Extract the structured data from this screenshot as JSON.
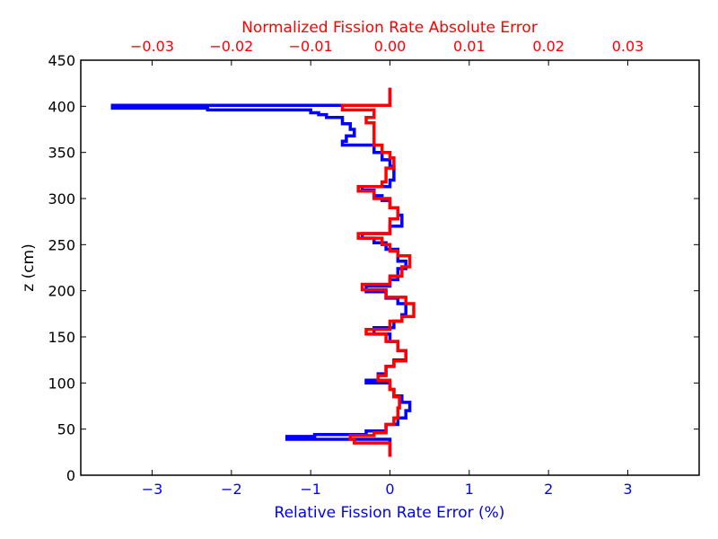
{
  "chart_data": {
    "type": "line",
    "title": "",
    "ylabel": "z (cm)",
    "ylim": [
      0,
      450
    ],
    "yticks": [
      0,
      50,
      100,
      150,
      200,
      250,
      300,
      350,
      400,
      450
    ],
    "xlabel_bottom": "Relative Fission Rate Error (%)",
    "xlim_bottom": [
      -3.9,
      3.9
    ],
    "xticks_bottom": [
      -3,
      -2,
      -1,
      0,
      1,
      2,
      3
    ],
    "xtick_labels_bottom": [
      "−3",
      "−2",
      "−1",
      "0",
      "1",
      "2",
      "3"
    ],
    "xlabel_top": "Normalized Fission Rate Absolute Error",
    "xlim_top": [
      -0.039,
      0.039
    ],
    "xticks_top": [
      -0.03,
      -0.02,
      -0.01,
      0.0,
      0.01,
      0.02,
      0.03
    ],
    "xtick_labels_top": [
      "−0.03",
      "−0.02",
      "−0.01",
      "0.00",
      "0.01",
      "0.02",
      "0.03"
    ],
    "grid": false,
    "legend": "none",
    "series": [
      {
        "axis": "bottom",
        "color": "#0000ff",
        "style": "steps",
        "points": [
          [
            0.0,
            420
          ],
          [
            0.0,
            401
          ],
          [
            -3.5,
            401
          ],
          [
            -3.5,
            398
          ],
          [
            -2.3,
            398
          ],
          [
            -2.3,
            396
          ],
          [
            -1.0,
            396
          ],
          [
            -1.0,
            393
          ],
          [
            -0.9,
            393
          ],
          [
            -0.9,
            391
          ],
          [
            -0.8,
            391
          ],
          [
            -0.8,
            388
          ],
          [
            -0.6,
            388
          ],
          [
            -0.6,
            381
          ],
          [
            -0.5,
            381
          ],
          [
            -0.5,
            375
          ],
          [
            -0.45,
            375
          ],
          [
            -0.45,
            368
          ],
          [
            -0.55,
            368
          ],
          [
            -0.55,
            362
          ],
          [
            -0.6,
            362
          ],
          [
            -0.6,
            358
          ],
          [
            -0.2,
            358
          ],
          [
            -0.2,
            350
          ],
          [
            -0.1,
            350
          ],
          [
            -0.1,
            342
          ],
          [
            0.0,
            342
          ],
          [
            0.0,
            335
          ],
          [
            0.05,
            335
          ],
          [
            0.05,
            320
          ],
          [
            0.0,
            320
          ],
          [
            0.0,
            313
          ],
          [
            -0.35,
            313
          ],
          [
            -0.35,
            309
          ],
          [
            -0.2,
            309
          ],
          [
            -0.2,
            303
          ],
          [
            -0.1,
            303
          ],
          [
            -0.1,
            298
          ],
          [
            0.0,
            298
          ],
          [
            0.0,
            290
          ],
          [
            0.1,
            290
          ],
          [
            0.1,
            282
          ],
          [
            0.15,
            282
          ],
          [
            0.15,
            270
          ],
          [
            0.0,
            270
          ],
          [
            0.0,
            262
          ],
          [
            -0.35,
            262
          ],
          [
            -0.35,
            257
          ],
          [
            -0.2,
            257
          ],
          [
            -0.2,
            252
          ],
          [
            -0.05,
            252
          ],
          [
            -0.05,
            245
          ],
          [
            0.1,
            245
          ],
          [
            0.1,
            232
          ],
          [
            0.2,
            232
          ],
          [
            0.2,
            224
          ],
          [
            0.1,
            224
          ],
          [
            0.1,
            212
          ],
          [
            0.0,
            212
          ],
          [
            0.0,
            205
          ],
          [
            -0.3,
            205
          ],
          [
            -0.3,
            199
          ],
          [
            -0.05,
            199
          ],
          [
            -0.05,
            192
          ],
          [
            0.1,
            192
          ],
          [
            0.1,
            186
          ],
          [
            0.2,
            186
          ],
          [
            0.2,
            174
          ],
          [
            0.15,
            174
          ],
          [
            0.15,
            167
          ],
          [
            0.05,
            167
          ],
          [
            0.05,
            160
          ],
          [
            -0.2,
            160
          ],
          [
            -0.2,
            153
          ],
          [
            0.0,
            153
          ],
          [
            0.0,
            145
          ],
          [
            0.1,
            145
          ],
          [
            0.1,
            135
          ],
          [
            0.2,
            135
          ],
          [
            0.2,
            125
          ],
          [
            0.05,
            125
          ],
          [
            0.05,
            118
          ],
          [
            -0.05,
            118
          ],
          [
            -0.05,
            110
          ],
          [
            -0.15,
            110
          ],
          [
            -0.15,
            103
          ],
          [
            -0.3,
            103
          ],
          [
            -0.3,
            100
          ],
          [
            0.0,
            100
          ],
          [
            0.0,
            93
          ],
          [
            0.05,
            93
          ],
          [
            0.05,
            86
          ],
          [
            0.15,
            86
          ],
          [
            0.15,
            79
          ],
          [
            0.25,
            79
          ],
          [
            0.25,
            70
          ],
          [
            0.2,
            70
          ],
          [
            0.2,
            62
          ],
          [
            0.1,
            62
          ],
          [
            0.1,
            55
          ],
          [
            -0.05,
            55
          ],
          [
            -0.05,
            48
          ],
          [
            -0.3,
            48
          ],
          [
            -0.3,
            44
          ],
          [
            -0.95,
            44
          ],
          [
            -0.95,
            42
          ],
          [
            -1.3,
            42
          ],
          [
            -1.3,
            39
          ],
          [
            0.0,
            39
          ],
          [
            0.0,
            20
          ]
        ]
      },
      {
        "axis": "top",
        "color": "#ff0000",
        "style": "steps",
        "points": [
          [
            0.0,
            420
          ],
          [
            0.0,
            401
          ],
          [
            -0.006,
            401
          ],
          [
            -0.006,
            396
          ],
          [
            -0.002,
            396
          ],
          [
            -0.002,
            388
          ],
          [
            -0.003,
            388
          ],
          [
            -0.003,
            382
          ],
          [
            -0.002,
            382
          ],
          [
            -0.002,
            370
          ],
          [
            -0.002,
            370
          ],
          [
            -0.002,
            358
          ],
          [
            -0.001,
            358
          ],
          [
            -0.001,
            350
          ],
          [
            0.0,
            350
          ],
          [
            0.0,
            344
          ],
          [
            0.0005,
            344
          ],
          [
            0.0005,
            333
          ],
          [
            -0.0005,
            333
          ],
          [
            -0.0005,
            318
          ],
          [
            -0.001,
            318
          ],
          [
            -0.001,
            313
          ],
          [
            -0.004,
            313
          ],
          [
            -0.004,
            308
          ],
          [
            -0.002,
            308
          ],
          [
            -0.002,
            300
          ],
          [
            0.0,
            300
          ],
          [
            0.0,
            290
          ],
          [
            0.001,
            290
          ],
          [
            0.001,
            278
          ],
          [
            0.0,
            278
          ],
          [
            0.0,
            262
          ],
          [
            -0.004,
            262
          ],
          [
            -0.004,
            257
          ],
          [
            -0.001,
            257
          ],
          [
            -0.001,
            250
          ],
          [
            0.0,
            250
          ],
          [
            0.0,
            243
          ],
          [
            0.001,
            243
          ],
          [
            0.001,
            238
          ],
          [
            0.0025,
            238
          ],
          [
            0.0025,
            226
          ],
          [
            0.0015,
            226
          ],
          [
            0.0015,
            216
          ],
          [
            0.0,
            216
          ],
          [
            0.0,
            207
          ],
          [
            -0.0035,
            207
          ],
          [
            -0.0035,
            201
          ],
          [
            -0.0005,
            201
          ],
          [
            -0.0005,
            193
          ],
          [
            0.002,
            193
          ],
          [
            0.002,
            186
          ],
          [
            0.003,
            186
          ],
          [
            0.003,
            172
          ],
          [
            0.0015,
            172
          ],
          [
            0.0015,
            167
          ],
          [
            0.0,
            167
          ],
          [
            0.0,
            158
          ],
          [
            -0.003,
            158
          ],
          [
            -0.003,
            153
          ],
          [
            -0.0005,
            153
          ],
          [
            -0.0005,
            145
          ],
          [
            0.001,
            145
          ],
          [
            0.001,
            135
          ],
          [
            0.002,
            135
          ],
          [
            0.002,
            124
          ],
          [
            0.0005,
            124
          ],
          [
            0.0005,
            118
          ],
          [
            -0.0005,
            118
          ],
          [
            -0.0005,
            108
          ],
          [
            -0.0015,
            108
          ],
          [
            -0.0015,
            103
          ],
          [
            0.0,
            103
          ],
          [
            0.0,
            93
          ],
          [
            0.0005,
            93
          ],
          [
            0.0005,
            85
          ],
          [
            0.0012,
            85
          ],
          [
            0.0012,
            73
          ],
          [
            0.001,
            73
          ],
          [
            0.001,
            62
          ],
          [
            0.0005,
            62
          ],
          [
            0.0005,
            55
          ],
          [
            -0.0005,
            55
          ],
          [
            -0.0005,
            46
          ],
          [
            -0.002,
            46
          ],
          [
            -0.002,
            43
          ],
          [
            -0.005,
            43
          ],
          [
            -0.005,
            39
          ],
          [
            -0.0045,
            39
          ],
          [
            -0.0045,
            35
          ],
          [
            0.0,
            35
          ],
          [
            0.0,
            20
          ]
        ]
      }
    ]
  },
  "colors": {
    "bottom_axis": "#0000ff",
    "top_axis": "#ff0000",
    "left_axis": "#000000"
  }
}
